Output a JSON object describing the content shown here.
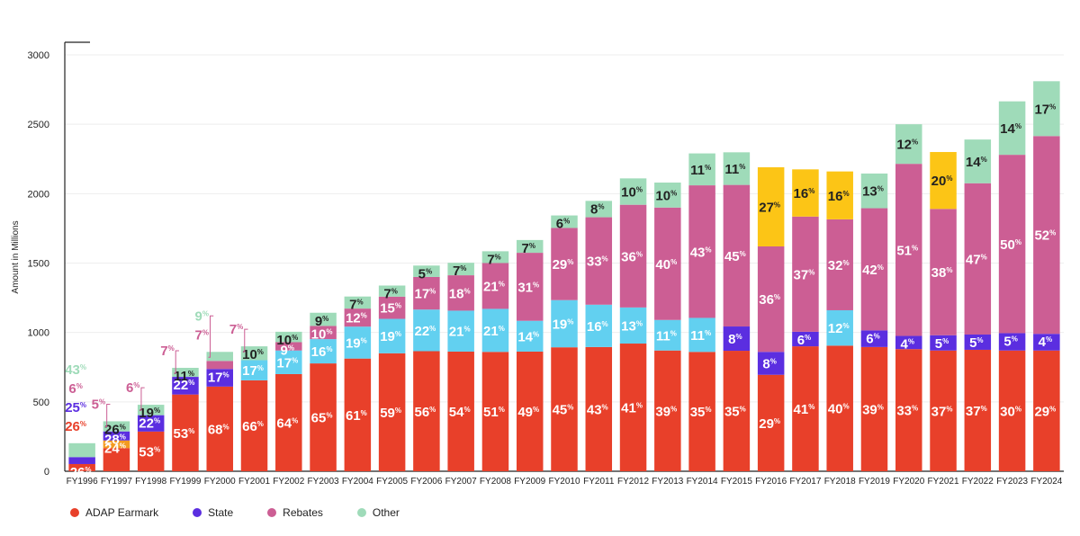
{
  "chart_data": {
    "type": "bar",
    "stacked": true,
    "ylabel": "Amount in Millions",
    "ylim": [
      0,
      3000
    ],
    "yticks": [
      0,
      500,
      1000,
      1500,
      2000,
      2500,
      3000
    ],
    "grid": true,
    "legend_position": "bottom-left",
    "categories": [
      "FY1996",
      "FY1997",
      "FY1998",
      "FY1999",
      "FY2000",
      "FY2001",
      "FY2002",
      "FY2003",
      "FY2004",
      "FY2005",
      "FY2006",
      "FY2007",
      "FY2008",
      "FY2009",
      "FY2010",
      "FY2011",
      "FY2012",
      "FY2013",
      "FY2014",
      "FY2015",
      "FY2016",
      "FY2017",
      "FY2018",
      "FY2019",
      "FY2020",
      "FY2021",
      "FY2022",
      "FY2023",
      "FY2024"
    ],
    "series": [
      {
        "name": "ADAP Earmark",
        "color": "#e8402a",
        "label_color": "#ffffff",
        "values": [
          52,
          167,
          286,
          553,
          610,
          655,
          700,
          777,
          812,
          850,
          865,
          862,
          860,
          862,
          893,
          895,
          920,
          870,
          860,
          868,
          695,
          900,
          905,
          895,
          880,
          870,
          875,
          870,
          870
        ],
        "labels": [
          "26",
          "",
          "53",
          "53",
          "68",
          "66",
          "64",
          "65",
          "61",
          "59",
          "56",
          "54",
          "51",
          "49",
          "45",
          "43",
          "41",
          "39",
          "35",
          "35",
          "29",
          "41",
          "40",
          "39",
          "33",
          "37",
          "37",
          "30",
          "29"
        ]
      },
      {
        "name": "Orange",
        "color": "#f39a20",
        "label_color": "#ffffff",
        "values": [
          0,
          55,
          0,
          0,
          0,
          0,
          0,
          0,
          0,
          0,
          0,
          0,
          0,
          0,
          0,
          0,
          0,
          0,
          0,
          0,
          0,
          0,
          0,
          0,
          0,
          0,
          0,
          0,
          0
        ],
        "labels": [
          "",
          "24",
          "",
          "",
          "",
          "",
          "",
          "",
          "",
          "",
          "",
          "",
          "",
          "",
          "",
          "",
          "",
          "",
          "",
          "",
          "",
          "",
          "",
          "",
          "",
          "",
          "",
          "",
          ""
        ]
      },
      {
        "name": "State",
        "color": "#5b2ee0",
        "label_color": "#ffffff",
        "values": [
          50,
          65,
          118,
          127,
          127,
          0,
          0,
          0,
          0,
          0,
          0,
          0,
          0,
          0,
          0,
          0,
          0,
          0,
          0,
          175,
          165,
          105,
          0,
          120,
          95,
          110,
          110,
          125,
          120
        ],
        "labels": [
          "",
          "28",
          "22",
          "22",
          "17",
          "",
          "",
          "",
          "",
          "",
          "",
          "",
          "",
          "",
          "",
          "",
          "",
          "",
          "",
          "8",
          "8",
          "6",
          "",
          "6",
          "4",
          "5",
          "5",
          "5",
          "4"
        ]
      },
      {
        "name": "Light Blue",
        "color": "#62d0f0",
        "label_color": "#ffffff",
        "values": [
          0,
          0,
          0,
          0,
          0,
          145,
          170,
          175,
          230,
          248,
          300,
          295,
          310,
          222,
          340,
          305,
          260,
          220,
          245,
          0,
          0,
          0,
          255,
          0,
          0,
          0,
          0,
          0,
          0
        ],
        "labels": [
          "",
          "",
          "",
          "",
          "",
          "17",
          "17",
          "16",
          "19",
          "19",
          "22",
          "21",
          "21",
          "14",
          "19",
          "16",
          "13",
          "11",
          "11",
          "",
          "",
          "",
          "12",
          "",
          "",
          "",
          "",
          "",
          ""
        ]
      },
      {
        "name": "Rebates",
        "color": "#cc5e94",
        "label_color": "#ffffff",
        "values": [
          0,
          0,
          0,
          0,
          58,
          0,
          60,
          95,
          130,
          160,
          235,
          255,
          330,
          490,
          520,
          630,
          740,
          810,
          955,
          1020,
          760,
          830,
          655,
          880,
          1240,
          910,
          1090,
          1285,
          1425
        ],
        "labels": [
          "",
          "",
          "",
          "",
          "",
          "",
          "9",
          "10",
          "12",
          "15",
          "17",
          "18",
          "21",
          "31",
          "29",
          "33",
          "36",
          "40",
          "43",
          "45",
          "36",
          "37",
          "32",
          "42",
          "51",
          "38",
          "47",
          "50",
          "52"
        ]
      },
      {
        "name": "Yellow",
        "color": "#fcc516",
        "label_color": "#222222",
        "values": [
          0,
          0,
          0,
          0,
          0,
          0,
          0,
          0,
          0,
          0,
          0,
          0,
          0,
          0,
          0,
          0,
          0,
          0,
          0,
          0,
          570,
          340,
          345,
          0,
          0,
          410,
          0,
          0,
          0
        ],
        "labels": [
          "",
          "",
          "",
          "",
          "",
          "",
          "",
          "",
          "",
          "",
          "",
          "",
          "",
          "",
          "",
          "",
          "",
          "",
          "",
          "",
          "27",
          "16",
          "16",
          "",
          "",
          "20",
          "",
          "",
          ""
        ]
      },
      {
        "name": "Other",
        "color": "#9fdbb9",
        "label_color": "#222222",
        "values": [
          100,
          73,
          75,
          65,
          65,
          100,
          75,
          95,
          87,
          80,
          82,
          90,
          85,
          92,
          90,
          118,
          190,
          180,
          230,
          235,
          0,
          0,
          0,
          250,
          285,
          0,
          315,
          385,
          395
        ],
        "labels": [
          "",
          "26",
          "19",
          "11",
          "",
          "10",
          "10",
          "9",
          "7",
          "7",
          "5",
          "7",
          "7",
          "7",
          "6",
          "8",
          "10",
          "10",
          "11",
          "11",
          "",
          "",
          "",
          "13",
          "12",
          "",
          "14",
          "14",
          "17"
        ]
      }
    ],
    "callouts": [
      {
        "category": "FY1996",
        "items": [
          {
            "text": "43",
            "color": "#9fdbb9"
          },
          {
            "text": "6",
            "color": "#cc5e94"
          },
          {
            "text": "25",
            "color": "#5b2ee0"
          },
          {
            "text": "26",
            "color": "#e8402a"
          }
        ]
      },
      {
        "category": "FY1997",
        "items": [
          {
            "text": "5",
            "color": "#cc5e94"
          }
        ]
      },
      {
        "category": "FY1998",
        "items": [
          {
            "text": "6",
            "color": "#cc5e94"
          }
        ]
      },
      {
        "category": "FY1999",
        "items": [
          {
            "text": "7",
            "color": "#cc5e94"
          }
        ]
      },
      {
        "category": "FY2000",
        "items": [
          {
            "text": "9",
            "color": "#9fdbb9"
          },
          {
            "text": "7",
            "color": "#cc5e94"
          }
        ]
      },
      {
        "category": "FY2001",
        "items": [
          {
            "text": "7",
            "color": "#cc5e94"
          }
        ]
      }
    ],
    "pct_symbol": "%"
  },
  "legend": [
    {
      "label": "ADAP Earmark",
      "color": "#e8402a"
    },
    {
      "label": "State",
      "color": "#5b2ee0"
    },
    {
      "label": "Rebates",
      "color": "#cc5e94"
    },
    {
      "label": "Other",
      "color": "#9fdbb9"
    }
  ]
}
